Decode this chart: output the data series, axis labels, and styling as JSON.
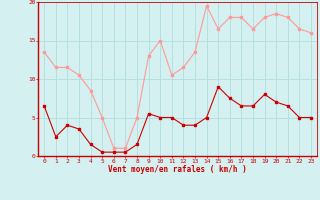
{
  "x": [
    0,
    1,
    2,
    3,
    4,
    5,
    6,
    7,
    8,
    9,
    10,
    11,
    12,
    13,
    14,
    15,
    16,
    17,
    18,
    19,
    20,
    21,
    22,
    23
  ],
  "wind_avg": [
    6.5,
    2.5,
    4.0,
    3.5,
    1.5,
    0.5,
    0.5,
    0.5,
    1.5,
    5.5,
    5.0,
    5.0,
    4.0,
    4.0,
    5.0,
    9.0,
    7.5,
    6.5,
    6.5,
    8.0,
    7.0,
    6.5,
    5.0,
    5.0
  ],
  "wind_gust": [
    13.5,
    11.5,
    11.5,
    10.5,
    8.5,
    5.0,
    1.0,
    1.0,
    5.0,
    13.0,
    15.0,
    10.5,
    11.5,
    13.5,
    19.5,
    16.5,
    18.0,
    18.0,
    16.5,
    18.0,
    18.5,
    18.0,
    16.5,
    16.0
  ],
  "avg_color": "#cc0000",
  "gust_color": "#ff9999",
  "background_color": "#d4f0f0",
  "grid_color": "#b0dede",
  "xlabel": "Vent moyen/en rafales ( km/h )",
  "ylim": [
    0,
    20
  ],
  "xlim": [
    -0.5,
    23.5
  ],
  "yticks": [
    0,
    5,
    10,
    15,
    20
  ],
  "xticks": [
    0,
    1,
    2,
    3,
    4,
    5,
    6,
    7,
    8,
    9,
    10,
    11,
    12,
    13,
    14,
    15,
    16,
    17,
    18,
    19,
    20,
    21,
    22,
    23
  ]
}
